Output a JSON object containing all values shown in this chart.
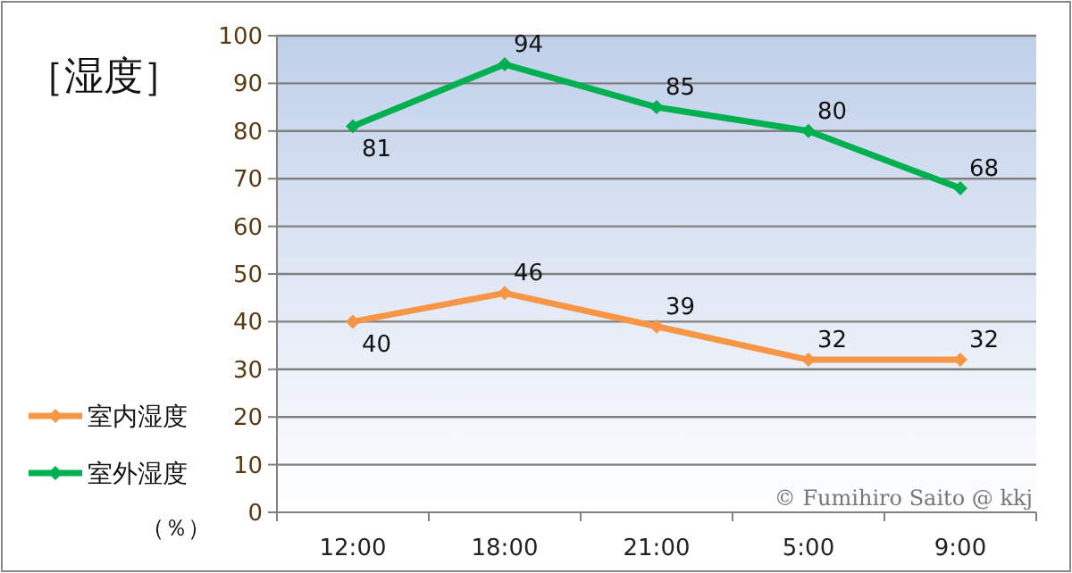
{
  "chart_data": {
    "type": "line",
    "title": "［湿度］",
    "ylabel": "（％）",
    "categories": [
      "12:00",
      "18:00",
      "21:00",
      "5:00",
      "9:00"
    ],
    "series": [
      {
        "name": "室内湿度",
        "color": "#f79646",
        "values": [
          40,
          46,
          39,
          32,
          32
        ]
      },
      {
        "name": "室外湿度",
        "color": "#00b050",
        "values": [
          81,
          94,
          85,
          80,
          68
        ]
      }
    ],
    "ylim": [
      0,
      100
    ],
    "yticks": [
      0,
      10,
      20,
      30,
      40,
      50,
      60,
      70,
      80,
      90,
      100
    ],
    "grid": "y",
    "legend": "left",
    "marker": "diamond",
    "data_labels": true,
    "annotations": [
      "© Fumihiro Saito @ kkj"
    ]
  }
}
